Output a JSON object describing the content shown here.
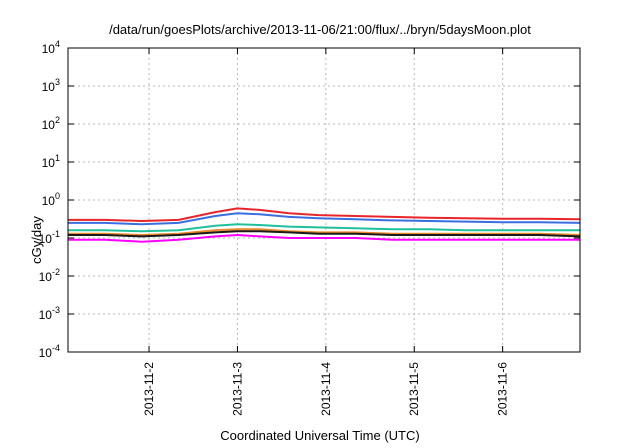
{
  "chart_data": {
    "type": "line",
    "title": "/data/run/goesPlots/archive/2013-11-06/21:00/flux/../bryn/5daysMoon.plot",
    "xlabel": "Coordinated Universal Time (UTC)",
    "ylabel": "cGy/day",
    "yscale": "log",
    "ylim": [
      0.0001,
      10000
    ],
    "xlim": [
      "2013-11-01T02:00",
      "2013-11-06T21:00"
    ],
    "grid": true,
    "legend": "none",
    "xticks": [
      "2013-11-2",
      "2013-11-3",
      "2013-11-4",
      "2013-11-5",
      "2013-11-6"
    ],
    "xtick_dates": [
      "2013-11-02T00:00",
      "2013-11-03T00:00",
      "2013-11-04T00:00",
      "2013-11-05T00:00",
      "2013-11-06T00:00"
    ],
    "yticks": [
      {
        "base": "10",
        "exp": "-4",
        "value": 0.0001
      },
      {
        "base": "10",
        "exp": "-3",
        "value": 0.001
      },
      {
        "base": "10",
        "exp": "-2",
        "value": 0.01
      },
      {
        "base": "10",
        "exp": "-1",
        "value": 0.1
      },
      {
        "base": "10",
        "exp": "0",
        "value": 1
      },
      {
        "base": "10",
        "exp": "1",
        "value": 10
      },
      {
        "base": "10",
        "exp": "2",
        "value": 100
      },
      {
        "base": "10",
        "exp": "3",
        "value": 1000
      },
      {
        "base": "10",
        "exp": "4",
        "value": 10000
      }
    ],
    "x": [
      "2013-11-01T02:00",
      "2013-11-01T12:00",
      "2013-11-01T22:00",
      "2013-11-02T08:00",
      "2013-11-02T18:00",
      "2013-11-03T00:00",
      "2013-11-03T06:00",
      "2013-11-03T14:00",
      "2013-11-03T22:00",
      "2013-11-04T08:00",
      "2013-11-04T18:00",
      "2013-11-05T04:00",
      "2013-11-05T14:00",
      "2013-11-06T00:00",
      "2013-11-06T10:00",
      "2013-11-06T21:00"
    ],
    "series": [
      {
        "color": "#e8262a",
        "values": [
          0.3,
          0.3,
          0.28,
          0.3,
          0.48,
          0.6,
          0.55,
          0.45,
          0.4,
          0.38,
          0.36,
          0.34,
          0.33,
          0.32,
          0.32,
          0.31
        ]
      },
      {
        "color": "#3a6fe0",
        "values": [
          0.25,
          0.25,
          0.23,
          0.25,
          0.38,
          0.45,
          0.42,
          0.36,
          0.33,
          0.31,
          0.29,
          0.28,
          0.27,
          0.26,
          0.26,
          0.25
        ]
      },
      {
        "color": "#1fc09a",
        "values": [
          0.16,
          0.16,
          0.15,
          0.16,
          0.21,
          0.23,
          0.22,
          0.2,
          0.19,
          0.18,
          0.17,
          0.17,
          0.16,
          0.16,
          0.16,
          0.16
        ]
      },
      {
        "color": "#e88a2a",
        "values": [
          0.13,
          0.13,
          0.12,
          0.13,
          0.16,
          0.17,
          0.17,
          0.15,
          0.14,
          0.14,
          0.13,
          0.13,
          0.13,
          0.13,
          0.13,
          0.12
        ]
      },
      {
        "color": "#1a1a1a",
        "values": [
          0.12,
          0.12,
          0.11,
          0.12,
          0.14,
          0.15,
          0.15,
          0.14,
          0.13,
          0.13,
          0.12,
          0.12,
          0.12,
          0.12,
          0.12,
          0.11
        ]
      },
      {
        "color": "#ff00ff",
        "values": [
          0.09,
          0.09,
          0.08,
          0.09,
          0.11,
          0.12,
          0.11,
          0.1,
          0.1,
          0.1,
          0.09,
          0.09,
          0.09,
          0.09,
          0.09,
          0.09
        ]
      }
    ]
  }
}
